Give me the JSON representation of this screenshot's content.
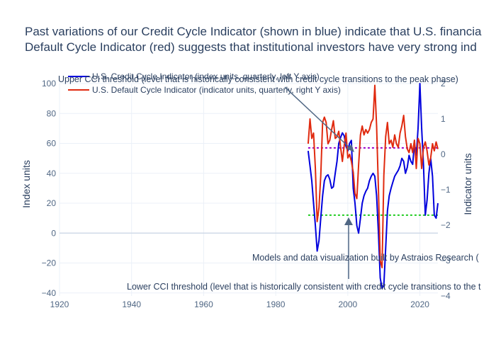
{
  "chart_data": {
    "type": "line",
    "title_lines": [
      "Past variations of our Credit Cycle Indicator (shown in blue) indicate that U.S. financia",
      "Default Cycle Indicator (red) suggests that institutional investors have very strong ind"
    ],
    "xlabel": "",
    "ylabel": "Index units",
    "y2label": "Indicator units",
    "xlim": [
      1920,
      2025
    ],
    "ylim": [
      -42,
      100
    ],
    "y2lim": [
      -4,
      2
    ],
    "x_ticks": [
      1920,
      1940,
      1960,
      1980,
      2000,
      2020
    ],
    "y_ticks": [
      -40,
      -20,
      0,
      20,
      40,
      60,
      80,
      100
    ],
    "y2_ticks": [
      -4,
      -3,
      -2,
      -1,
      0,
      1,
      2
    ],
    "grid": true,
    "legend_position": "top-left",
    "series": [
      {
        "name": "U.S. Credit Cycle Indicator (index units, quarterly, left Y axis)",
        "color": "#0000dd",
        "axis": "left",
        "x": [
          1989.0,
          1989.5,
          1990.0,
          1990.5,
          1991.0,
          1991.5,
          1992.0,
          1992.5,
          1993.0,
          1993.5,
          1994.0,
          1994.5,
          1995.0,
          1995.5,
          1996.0,
          1996.5,
          1997.0,
          1997.5,
          1998.0,
          1998.5,
          1999.0,
          1999.5,
          2000.0,
          2000.5,
          2001.0,
          2001.5,
          2002.0,
          2002.5,
          2003.0,
          2003.5,
          2004.0,
          2004.5,
          2005.0,
          2005.5,
          2006.0,
          2006.5,
          2007.0,
          2007.5,
          2008.0,
          2008.5,
          2009.0,
          2009.5,
          2010.0,
          2010.5,
          2011.0,
          2011.5,
          2012.0,
          2012.5,
          2013.0,
          2013.5,
          2014.0,
          2014.5,
          2015.0,
          2015.5,
          2016.0,
          2016.5,
          2017.0,
          2017.5,
          2018.0,
          2018.5,
          2019.0,
          2019.5,
          2020.0,
          2020.5,
          2021.0,
          2021.5,
          2022.0,
          2022.5,
          2023.0,
          2023.5,
          2024.0,
          2024.5,
          2025.0
        ],
        "y": [
          55,
          45,
          35,
          20,
          5,
          -12,
          -5,
          10,
          25,
          35,
          38,
          39,
          36,
          30,
          31,
          40,
          48,
          60,
          64,
          67,
          65,
          58,
          55,
          60,
          62,
          30,
          20,
          5,
          0,
          10,
          20,
          25,
          28,
          30,
          35,
          38,
          40,
          38,
          25,
          0,
          -30,
          -37,
          -35,
          -10,
          15,
          25,
          30,
          34,
          38,
          40,
          42,
          45,
          50,
          48,
          40,
          44,
          52,
          48,
          46,
          60,
          52,
          70,
          100,
          70,
          45,
          12,
          22,
          40,
          50,
          38,
          12,
          10,
          20
        ],
        "y2": []
      },
      {
        "name": "U.S. Default Cycle Indicator (indicator units, quarterly, right Y axis)",
        "color": "#e02a0f",
        "axis": "right",
        "x": [
          1989.0,
          1989.5,
          1990.0,
          1990.5,
          1991.0,
          1991.5,
          1992.0,
          1992.5,
          1993.0,
          1993.5,
          1994.0,
          1994.5,
          1995.0,
          1995.5,
          1996.0,
          1996.5,
          1997.0,
          1997.5,
          1998.0,
          1998.5,
          1999.0,
          1999.5,
          2000.0,
          2000.5,
          2001.0,
          2001.5,
          2002.0,
          2002.5,
          2003.0,
          2003.5,
          2004.0,
          2004.5,
          2005.0,
          2005.5,
          2006.0,
          2006.5,
          2007.0,
          2007.5,
          2008.0,
          2008.5,
          2009.0,
          2009.5,
          2010.0,
          2010.5,
          2011.0,
          2011.5,
          2012.0,
          2012.5,
          2013.0,
          2013.5,
          2014.0,
          2014.5,
          2015.0,
          2015.5,
          2016.0,
          2016.5,
          2017.0,
          2017.5,
          2018.0,
          2018.5,
          2019.0,
          2019.5,
          2020.0,
          2020.5,
          2021.0,
          2021.5,
          2022.0,
          2022.5,
          2023.0,
          2023.5,
          2024.0,
          2024.5,
          2025.0
        ],
        "y": [
          0.3,
          1.0,
          0.45,
          0.6,
          -0.4,
          -1.9,
          -1.5,
          -0.6,
          0.9,
          1.05,
          0.9,
          0.3,
          0.4,
          0.7,
          0.95,
          0.45,
          0.5,
          0.65,
          0.2,
          -0.2,
          0.25,
          0.6,
          -0.1,
          0.0,
          -0.2,
          -0.5,
          -1.1,
          -1.25,
          -0.3,
          0.55,
          0.8,
          0.55,
          0.7,
          0.6,
          0.7,
          0.9,
          1.0,
          1.95,
          0.8,
          -1.0,
          -3.0,
          -3.2,
          -0.6,
          0.5,
          0.9,
          0.3,
          0.4,
          0.2,
          0.55,
          0.3,
          0.2,
          0.6,
          0.8,
          1.1,
          0.5,
          0.15,
          0.05,
          0.3,
          0.05,
          0.4,
          -0.4,
          0.45,
          0.3,
          -0.4,
          0.2,
          0.35,
          0.1,
          -0.3,
          -0.1,
          0.3,
          0.1,
          0.35,
          0.15
        ]
      }
    ],
    "thresholds": [
      {
        "name": "upper",
        "color": "#9900cc",
        "axis": "left",
        "value": 57,
        "x_range": [
          1989,
          2025
        ]
      },
      {
        "name": "lower",
        "color": "#22cc22",
        "axis": "left",
        "value": 12,
        "x_range": [
          1989,
          2025
        ]
      }
    ],
    "annotations": [
      {
        "name": "upper-threshold-note",
        "text": "Upper CCI threshold (level that is historically consistent with credit cycle transitions to the peak phase)",
        "arrow_x": 2003,
        "arrow_y": 57
      },
      {
        "name": "lower-threshold-note",
        "text": "Lower CCI threshold (level that is historically consistent with credit cycle transitions to the t",
        "arrow_x": 2000.3,
        "arrow_y": 12
      },
      {
        "name": "credit-note",
        "text": "Models and data visualization built by Astraios Research ("
      }
    ]
  }
}
